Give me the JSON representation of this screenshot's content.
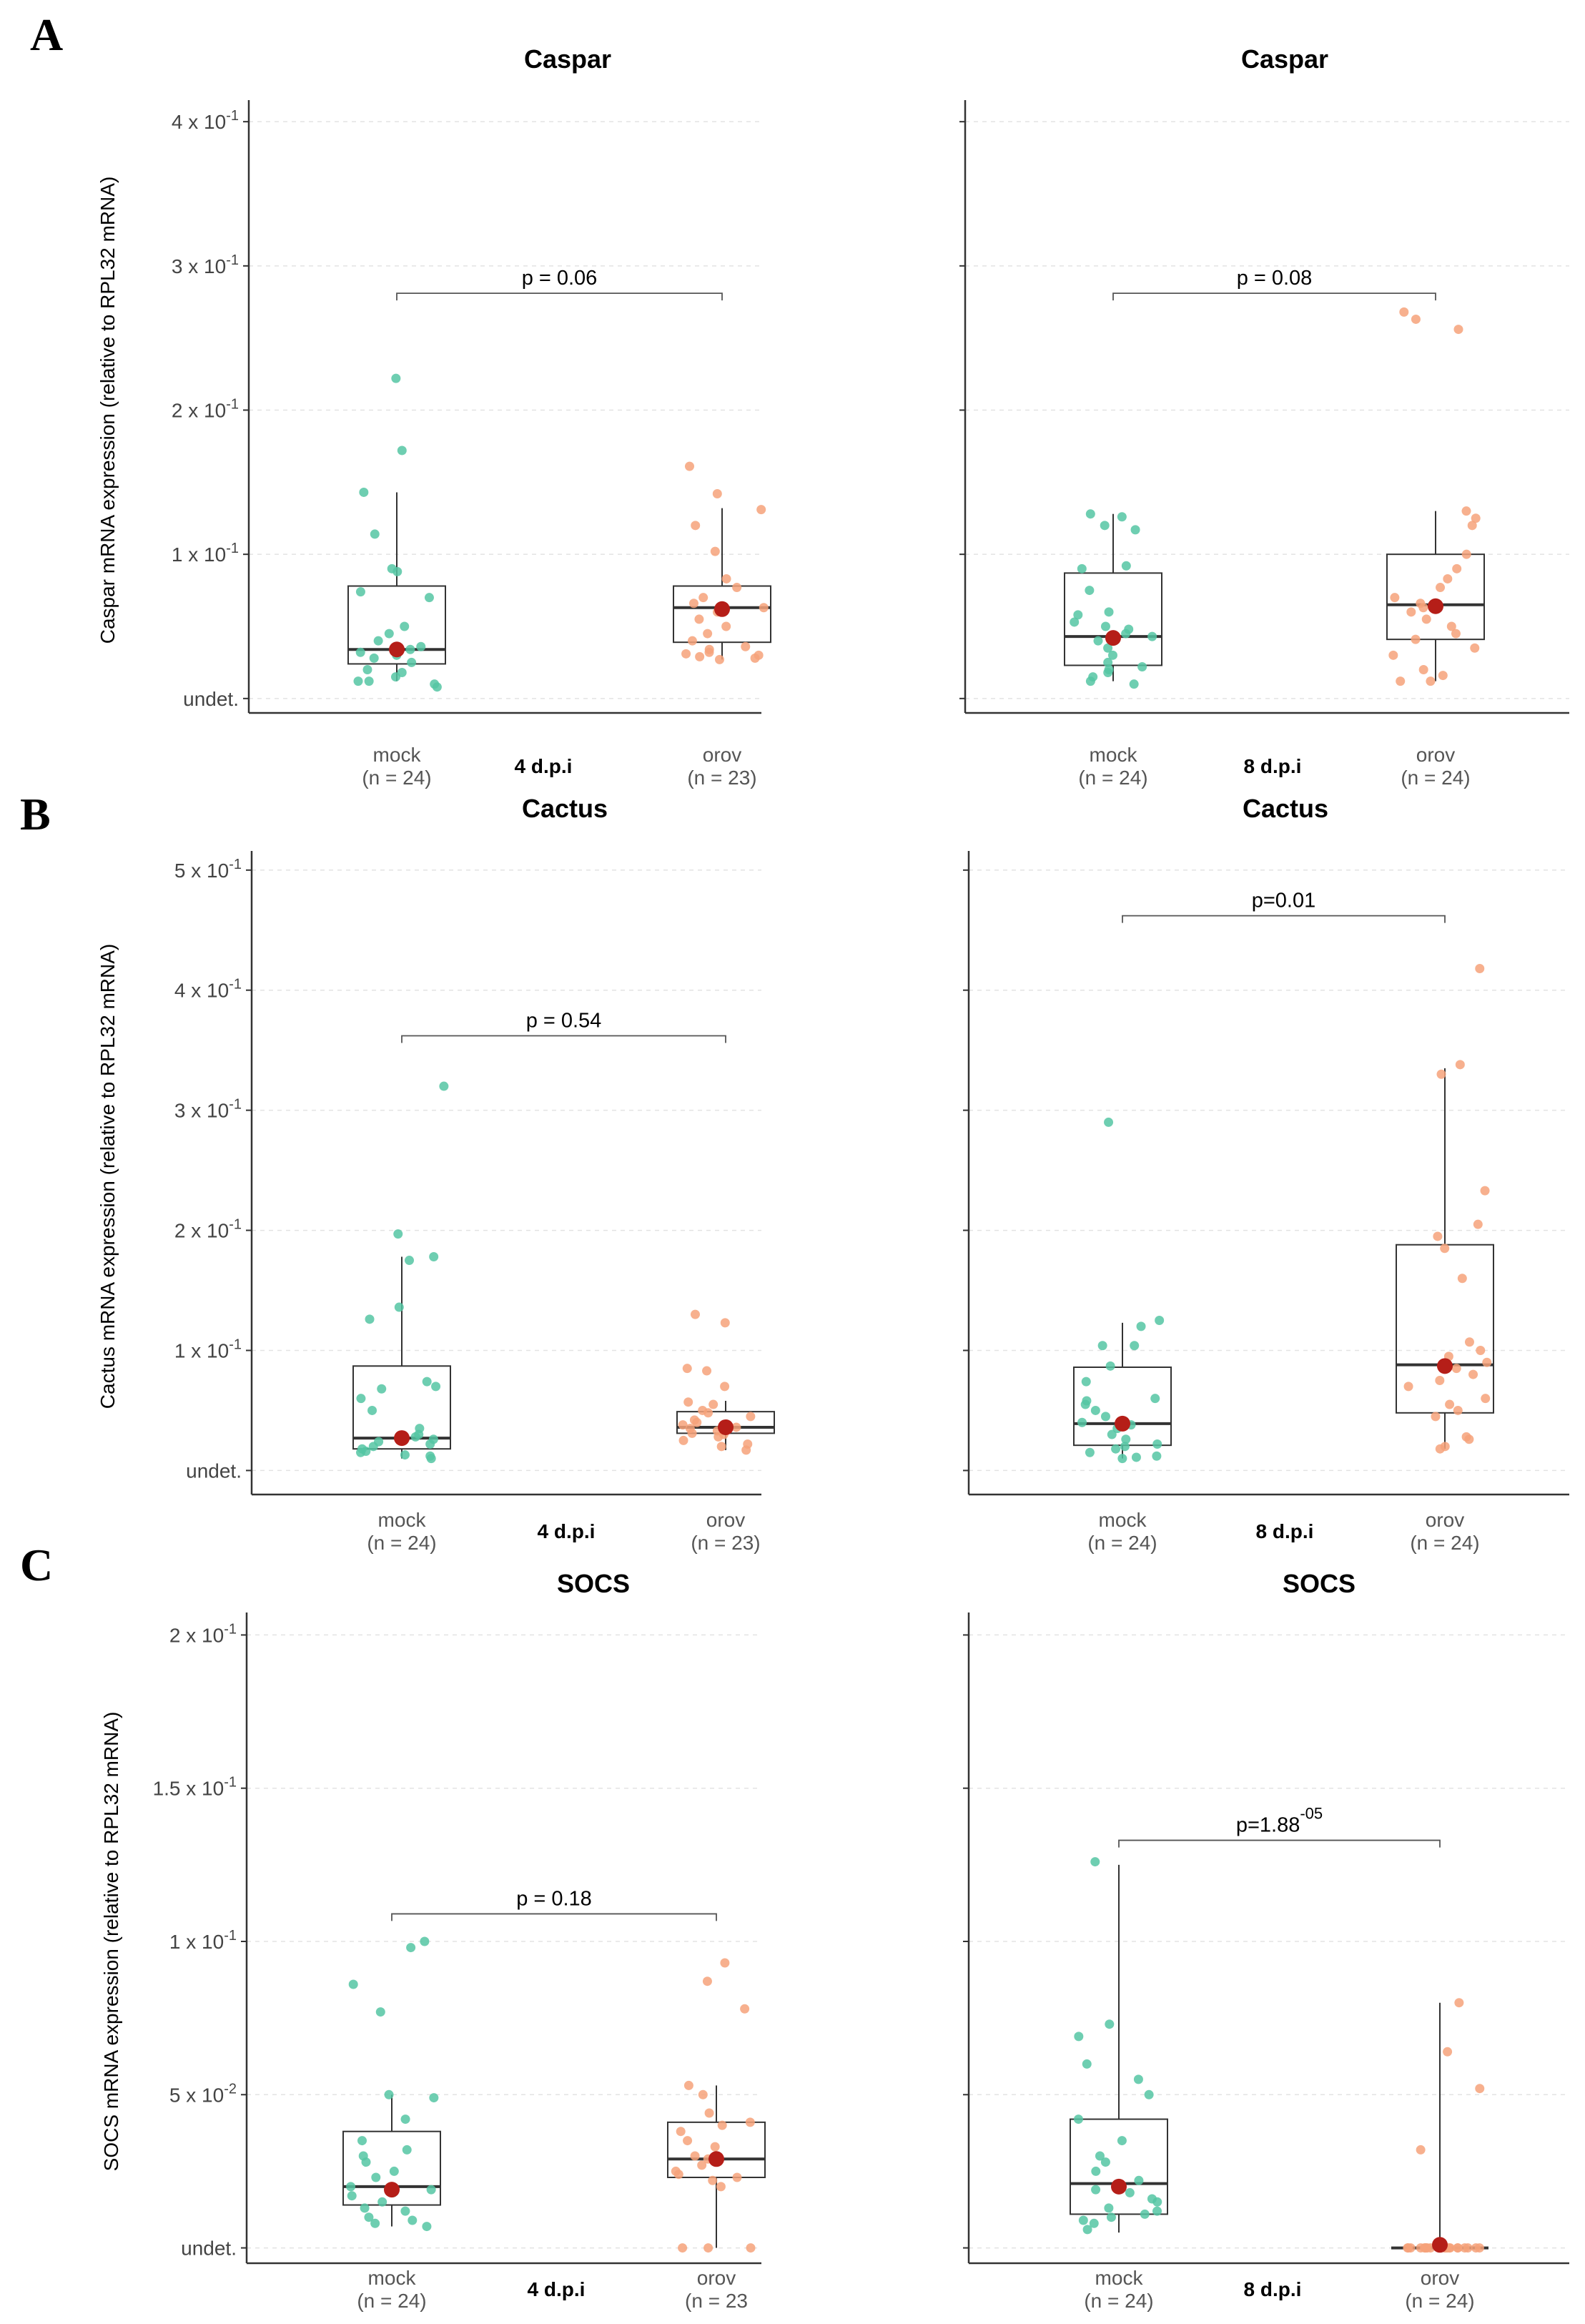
{
  "panel_letters": [
    "A",
    "B",
    "C"
  ],
  "chart_data": [
    {
      "type": "box",
      "title": "Caspar",
      "ylabel": "Caspar mRNA expression (relative to RPL32 mRNA)",
      "ylim": [
        -0.01,
        0.41
      ],
      "yticks": [
        {
          "value": 0,
          "label": "undet.",
          "exp": ""
        },
        {
          "value": 0.1,
          "label": "1 x 10",
          "exp": "-1"
        },
        {
          "value": 0.2,
          "label": "2 x 10",
          "exp": "-1"
        },
        {
          "value": 0.3,
          "label": "3 x 10",
          "exp": "-1"
        },
        {
          "value": 0.4,
          "label": "4 x 10",
          "exp": "-1"
        }
      ],
      "group_label": "4 d.p.i",
      "categories": [
        "mock",
        "orov"
      ],
      "counts": [
        "(n = 24)",
        "(n = 23)"
      ],
      "series": [
        {
          "name": "mock",
          "color": "#55c6a3",
          "q1": 0.024,
          "median": 0.034,
          "q3": 0.078,
          "whisker_low": 0.012,
          "whisker_high": 0.143,
          "mean": 0.034,
          "points": [
            0.222,
            0.172,
            0.143,
            0.114,
            0.09,
            0.088,
            0.074,
            0.07,
            0.05,
            0.045,
            0.04,
            0.036,
            0.034,
            0.032,
            0.03,
            0.028,
            0.025,
            0.02,
            0.018,
            0.015,
            0.012,
            0.012,
            0.01,
            0.008
          ]
        },
        {
          "name": "orov",
          "color": "#f6a27a",
          "q1": 0.039,
          "median": 0.063,
          "q3": 0.078,
          "whisker_low": 0.027,
          "whisker_high": 0.132,
          "mean": 0.062,
          "points": [
            0.161,
            0.142,
            0.131,
            0.12,
            0.102,
            0.083,
            0.077,
            0.07,
            0.066,
            0.063,
            0.06,
            0.055,
            0.05,
            0.045,
            0.04,
            0.036,
            0.034,
            0.032,
            0.031,
            0.03,
            0.029,
            0.028,
            0.027
          ]
        }
      ],
      "pvalue": {
        "text": "p = 0.06",
        "exp": "",
        "y": 0.281
      }
    },
    {
      "type": "box",
      "title": "Caspar",
      "ylabel": "",
      "ylim": [
        -0.01,
        0.41
      ],
      "yticks": [
        {
          "value": 0,
          "label": "",
          "exp": ""
        },
        {
          "value": 0.1,
          "label": "",
          "exp": ""
        },
        {
          "value": 0.2,
          "label": "",
          "exp": ""
        },
        {
          "value": 0.3,
          "label": "",
          "exp": ""
        },
        {
          "value": 0.4,
          "label": "",
          "exp": ""
        }
      ],
      "group_label": "8 d.p.i",
      "categories": [
        "mock",
        "orov"
      ],
      "counts": [
        "(n = 24)",
        "(n = 24)"
      ],
      "series": [
        {
          "name": "mock",
          "color": "#55c6a3",
          "q1": 0.023,
          "median": 0.043,
          "q3": 0.087,
          "whisker_low": 0.012,
          "whisker_high": 0.128,
          "mean": 0.042,
          "points": [
            0.128,
            0.126,
            0.12,
            0.117,
            0.092,
            0.09,
            0.075,
            0.06,
            0.058,
            0.053,
            0.05,
            0.048,
            0.045,
            0.043,
            0.04,
            0.035,
            0.03,
            0.025,
            0.022,
            0.02,
            0.018,
            0.015,
            0.012,
            0.01
          ]
        },
        {
          "name": "orov",
          "color": "#f6a27a",
          "q1": 0.041,
          "median": 0.065,
          "q3": 0.1,
          "whisker_low": 0.012,
          "whisker_high": 0.13,
          "mean": 0.064,
          "points": [
            0.268,
            0.263,
            0.256,
            0.13,
            0.125,
            0.12,
            0.1,
            0.09,
            0.083,
            0.077,
            0.07,
            0.066,
            0.063,
            0.06,
            0.055,
            0.05,
            0.045,
            0.041,
            0.035,
            0.03,
            0.02,
            0.016,
            0.012,
            0.012
          ]
        }
      ],
      "pvalue": {
        "text": "p = 0.08",
        "exp": "",
        "y": 0.281
      }
    },
    {
      "type": "box",
      "title": "Cactus",
      "ylabel": "Cactus mRNA expression (relative to RPL32 mRNA)",
      "ylim": [
        -0.02,
        0.51
      ],
      "yticks": [
        {
          "value": 0,
          "label": "undet.",
          "exp": ""
        },
        {
          "value": 0.1,
          "label": "1 x 10",
          "exp": "-1"
        },
        {
          "value": 0.2,
          "label": "2 x 10",
          "exp": "-1"
        },
        {
          "value": 0.3,
          "label": "3 x 10",
          "exp": "-1"
        },
        {
          "value": 0.4,
          "label": "4 x 10",
          "exp": "-1"
        },
        {
          "value": 0.5,
          "label": "5 x 10",
          "exp": "-1"
        }
      ],
      "group_label": "4 d.p.i",
      "categories": [
        "mock",
        "orov"
      ],
      "counts": [
        "(n = 24)",
        "(n = 23)"
      ],
      "series": [
        {
          "name": "mock",
          "color": "#55c6a3",
          "q1": 0.018,
          "median": 0.027,
          "q3": 0.087,
          "whisker_low": 0.01,
          "whisker_high": 0.178,
          "mean": 0.027,
          "points": [
            0.32,
            0.197,
            0.178,
            0.175,
            0.136,
            0.126,
            0.074,
            0.07,
            0.068,
            0.06,
            0.05,
            0.035,
            0.03,
            0.028,
            0.026,
            0.024,
            0.022,
            0.02,
            0.018,
            0.016,
            0.015,
            0.013,
            0.012,
            0.01
          ]
        },
        {
          "name": "orov",
          "color": "#f6a27a",
          "q1": 0.031,
          "median": 0.036,
          "q3": 0.049,
          "whisker_low": 0.017,
          "whisker_high": 0.058,
          "mean": 0.036,
          "points": [
            0.13,
            0.123,
            0.085,
            0.083,
            0.07,
            0.057,
            0.055,
            0.05,
            0.048,
            0.045,
            0.042,
            0.04,
            0.038,
            0.036,
            0.035,
            0.033,
            0.031,
            0.03,
            0.028,
            0.025,
            0.022,
            0.02,
            0.017
          ]
        }
      ],
      "pvalue": {
        "text": "p = 0.54",
        "exp": "",
        "y": 0.362
      }
    },
    {
      "type": "box",
      "title": "Cactus",
      "ylabel": "",
      "ylim": [
        -0.02,
        0.51
      ],
      "yticks": [
        {
          "value": 0,
          "label": "",
          "exp": ""
        },
        {
          "value": 0.1,
          "label": "",
          "exp": ""
        },
        {
          "value": 0.2,
          "label": "",
          "exp": ""
        },
        {
          "value": 0.3,
          "label": "",
          "exp": ""
        },
        {
          "value": 0.4,
          "label": "",
          "exp": ""
        },
        {
          "value": 0.5,
          "label": "",
          "exp": ""
        }
      ],
      "group_label": "8 d.p.i",
      "categories": [
        "mock",
        "orov"
      ],
      "counts": [
        "(n = 24)",
        "(n = 24)"
      ],
      "series": [
        {
          "name": "mock",
          "color": "#55c6a3",
          "q1": 0.021,
          "median": 0.039,
          "q3": 0.086,
          "whisker_low": 0.01,
          "whisker_high": 0.123,
          "mean": 0.039,
          "points": [
            0.29,
            0.125,
            0.12,
            0.104,
            0.104,
            0.087,
            0.074,
            0.06,
            0.058,
            0.055,
            0.05,
            0.045,
            0.04,
            0.038,
            0.035,
            0.03,
            0.026,
            0.022,
            0.02,
            0.018,
            0.015,
            0.012,
            0.011,
            0.01
          ]
        },
        {
          "name": "orov",
          "color": "#f6a27a",
          "q1": 0.048,
          "median": 0.088,
          "q3": 0.188,
          "whisker_low": 0.018,
          "whisker_high": 0.335,
          "mean": 0.087,
          "points": [
            0.418,
            0.338,
            0.33,
            0.233,
            0.205,
            0.195,
            0.185,
            0.16,
            0.107,
            0.1,
            0.095,
            0.09,
            0.085,
            0.08,
            0.075,
            0.07,
            0.06,
            0.055,
            0.05,
            0.045,
            0.028,
            0.026,
            0.02,
            0.018
          ]
        }
      ],
      "pvalue": {
        "text": "p=0.01",
        "exp": "",
        "y": 0.462
      }
    },
    {
      "type": "box",
      "title": "SOCS",
      "ylabel": "SOCS mRNA expression (relative to RPL32 mRNA)",
      "ylim": [
        -0.005,
        0.205
      ],
      "yticks": [
        {
          "value": 0,
          "label": "undet.",
          "exp": ""
        },
        {
          "value": 0.05,
          "label": "5 x 10",
          "exp": "-2"
        },
        {
          "value": 0.1,
          "label": "1 x 10",
          "exp": "-1"
        },
        {
          "value": 0.15,
          "label": "1.5 x 10",
          "exp": "-1"
        },
        {
          "value": 0.2,
          "label": "2 x 10",
          "exp": "-1"
        }
      ],
      "group_label": "4 d.p.i",
      "categories": [
        "mock",
        "orov"
      ],
      "counts": [
        "(n = 24)",
        "(n = 23"
      ],
      "series": [
        {
          "name": "mock",
          "color": "#55c6a3",
          "q1": 0.014,
          "median": 0.02,
          "q3": 0.038,
          "whisker_low": 0.007,
          "whisker_high": 0.05,
          "mean": 0.019,
          "points": [
            0.1,
            0.098,
            0.086,
            0.077,
            0.05,
            0.049,
            0.042,
            0.035,
            0.032,
            0.03,
            0.028,
            0.025,
            0.023,
            0.02,
            0.019,
            0.018,
            0.017,
            0.015,
            0.013,
            0.012,
            0.01,
            0.009,
            0.008,
            0.007
          ]
        },
        {
          "name": "orov",
          "color": "#f6a27a",
          "q1": 0.023,
          "median": 0.029,
          "q3": 0.041,
          "whisker_low": 0.0,
          "whisker_high": 0.053,
          "mean": 0.029,
          "points": [
            0.093,
            0.087,
            0.078,
            0.053,
            0.05,
            0.044,
            0.041,
            0.04,
            0.038,
            0.035,
            0.033,
            0.03,
            0.029,
            0.028,
            0.027,
            0.025,
            0.024,
            0.023,
            0.022,
            0.02,
            0.0,
            0.0,
            0.0
          ]
        }
      ],
      "pvalue": {
        "text": "p = 0.18",
        "exp": "",
        "y": 0.109
      }
    },
    {
      "type": "box",
      "title": "SOCS",
      "ylabel": "",
      "ylim": [
        -0.005,
        0.205
      ],
      "yticks": [
        {
          "value": 0,
          "label": "",
          "exp": ""
        },
        {
          "value": 0.05,
          "label": "",
          "exp": ""
        },
        {
          "value": 0.1,
          "label": "",
          "exp": ""
        },
        {
          "value": 0.15,
          "label": "",
          "exp": ""
        },
        {
          "value": 0.2,
          "label": "",
          "exp": ""
        }
      ],
      "group_label": "8 d.p.i",
      "categories": [
        "mock",
        "orov"
      ],
      "counts": [
        "(n = 24)",
        "(n = 24)"
      ],
      "series": [
        {
          "name": "mock",
          "color": "#55c6a3",
          "q1": 0.011,
          "median": 0.021,
          "q3": 0.042,
          "whisker_low": 0.005,
          "whisker_high": 0.125,
          "mean": 0.02,
          "points": [
            0.126,
            0.073,
            0.069,
            0.06,
            0.055,
            0.05,
            0.042,
            0.035,
            0.03,
            0.028,
            0.025,
            0.022,
            0.02,
            0.019,
            0.018,
            0.016,
            0.015,
            0.013,
            0.012,
            0.011,
            0.01,
            0.009,
            0.008,
            0.006
          ]
        },
        {
          "name": "orov",
          "color": "#f6a27a",
          "q1": 0.0,
          "median": 0.0,
          "q3": 0.0,
          "whisker_low": 0.0,
          "whisker_high": 0.08,
          "mean": 0.001,
          "points": [
            0.08,
            0.064,
            0.052,
            0.032,
            0.0,
            0.0,
            0.0,
            0.0,
            0.0,
            0.0,
            0.0,
            0.0,
            0.0,
            0.0,
            0.0,
            0.0,
            0.0,
            0.0,
            0.0,
            0.0,
            0.0,
            0.0,
            0.0,
            0.0
          ]
        }
      ],
      "pvalue": {
        "text": "p=1.88",
        "exp": "-05",
        "y": 0.133
      }
    }
  ]
}
